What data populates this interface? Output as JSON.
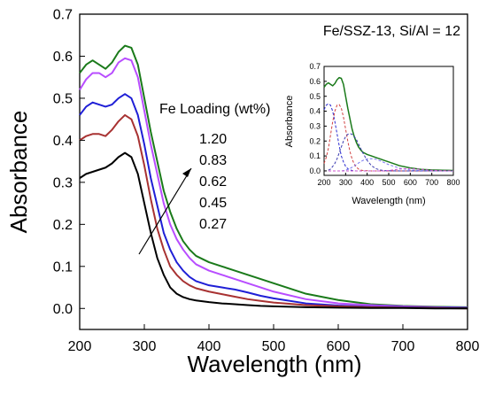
{
  "chart_data": [
    {
      "type": "line",
      "title": "Fe/SSZ-13, Si/Al = 12",
      "xlabel": "Wavelength (nm)",
      "ylabel": "Absorbance",
      "xlim": [
        200,
        800
      ],
      "ylim": [
        -0.05,
        0.7
      ],
      "x_ticks": [
        200,
        300,
        400,
        500,
        600,
        700,
        800
      ],
      "y_ticks": [
        0.0,
        0.1,
        0.2,
        0.3,
        0.4,
        0.5,
        0.6,
        0.7
      ],
      "x_tick_labels": [
        "200",
        "300",
        "400",
        "500",
        "600",
        "700",
        "800"
      ],
      "y_tick_labels": [
        "0.0",
        "0.1",
        "0.2",
        "0.3",
        "0.4",
        "0.5",
        "0.6",
        "0.7"
      ],
      "grid": false,
      "legend_title": "Fe Loading (wt%)",
      "legend_entries": [
        "1.20",
        "0.83",
        "0.62",
        "0.45",
        "0.27"
      ],
      "annotation": "arrow pointing toward increasing Fe loading",
      "x": [
        200,
        210,
        220,
        230,
        240,
        250,
        260,
        270,
        280,
        290,
        300,
        310,
        320,
        330,
        340,
        350,
        360,
        370,
        380,
        400,
        420,
        440,
        460,
        480,
        500,
        550,
        600,
        650,
        700,
        750,
        800
      ],
      "series": [
        {
          "name": "1.20",
          "color": "#1a7a1a",
          "values": [
            0.56,
            0.58,
            0.59,
            0.58,
            0.57,
            0.585,
            0.61,
            0.625,
            0.62,
            0.58,
            0.5,
            0.42,
            0.35,
            0.28,
            0.23,
            0.19,
            0.16,
            0.14,
            0.125,
            0.11,
            0.1,
            0.09,
            0.08,
            0.07,
            0.06,
            0.035,
            0.02,
            0.01,
            0.006,
            0.004,
            0.003
          ]
        },
        {
          "name": "0.83",
          "color": "#b84dff",
          "values": [
            0.52,
            0.545,
            0.56,
            0.56,
            0.55,
            0.56,
            0.585,
            0.595,
            0.59,
            0.55,
            0.47,
            0.39,
            0.32,
            0.25,
            0.2,
            0.165,
            0.14,
            0.12,
            0.105,
            0.09,
            0.08,
            0.07,
            0.06,
            0.05,
            0.04,
            0.022,
            0.012,
            0.008,
            0.005,
            0.003,
            0.002
          ]
        },
        {
          "name": "0.62",
          "color": "#1f1fd6",
          "values": [
            0.46,
            0.48,
            0.49,
            0.485,
            0.48,
            0.485,
            0.5,
            0.51,
            0.5,
            0.46,
            0.39,
            0.31,
            0.245,
            0.18,
            0.14,
            0.11,
            0.09,
            0.075,
            0.065,
            0.055,
            0.05,
            0.045,
            0.038,
            0.03,
            0.024,
            0.012,
            0.007,
            0.004,
            0.003,
            0.002,
            0.001
          ]
        },
        {
          "name": "0.45",
          "color": "#a83232",
          "values": [
            0.4,
            0.41,
            0.415,
            0.415,
            0.41,
            0.425,
            0.445,
            0.46,
            0.45,
            0.41,
            0.34,
            0.26,
            0.19,
            0.14,
            0.1,
            0.08,
            0.065,
            0.055,
            0.048,
            0.04,
            0.034,
            0.028,
            0.022,
            0.018,
            0.014,
            0.008,
            0.005,
            0.003,
            0.002,
            0.001,
            0.0
          ]
        },
        {
          "name": "0.27",
          "color": "#000000",
          "values": [
            0.31,
            0.32,
            0.325,
            0.33,
            0.335,
            0.345,
            0.36,
            0.37,
            0.36,
            0.32,
            0.25,
            0.18,
            0.12,
            0.08,
            0.05,
            0.035,
            0.027,
            0.022,
            0.019,
            0.015,
            0.012,
            0.01,
            0.008,
            0.006,
            0.005,
            0.003,
            0.002,
            0.001,
            0.001,
            0.0,
            0.0
          ]
        }
      ]
    },
    {
      "type": "line",
      "title": "",
      "xlabel": "Wavelength (nm)",
      "ylabel": "Absorbance",
      "xlim": [
        200,
        800
      ],
      "ylim": [
        -0.03,
        0.7
      ],
      "x_ticks": [
        200,
        300,
        400,
        500,
        600,
        700,
        800
      ],
      "y_ticks": [
        0.0,
        0.1,
        0.2,
        0.3,
        0.4,
        0.5,
        0.6,
        0.7
      ],
      "x_tick_labels": [
        "200",
        "300",
        "400",
        "500",
        "600",
        "700",
        "800"
      ],
      "y_tick_labels": [
        "0.0",
        "0.1",
        "0.2",
        "0.3",
        "0.4",
        "0.5",
        "0.6",
        "0.7"
      ],
      "grid": false,
      "x": [
        200,
        210,
        220,
        230,
        240,
        250,
        260,
        270,
        280,
        290,
        300,
        310,
        320,
        330,
        340,
        350,
        360,
        370,
        380,
        400,
        420,
        440,
        460,
        480,
        500,
        550,
        600,
        650,
        700,
        750,
        800
      ],
      "series": [
        {
          "color": "#1a7a1a",
          "style": "solid",
          "values": [
            0.56,
            0.58,
            0.59,
            0.58,
            0.57,
            0.585,
            0.61,
            0.625,
            0.62,
            0.58,
            0.5,
            0.42,
            0.35,
            0.28,
            0.23,
            0.19,
            0.16,
            0.14,
            0.125,
            0.11,
            0.1,
            0.09,
            0.08,
            0.07,
            0.06,
            0.035,
            0.02,
            0.01,
            0.006,
            0.004,
            0.003
          ]
        },
        {
          "color": "#2b2bd0",
          "style": "dashed",
          "values": [
            0.41,
            0.44,
            0.45,
            0.44,
            0.4,
            0.33,
            0.25,
            0.17,
            0.1,
            0.06,
            0.03,
            0.015,
            0.007,
            0.003,
            0.001,
            0,
            0,
            0,
            0,
            0,
            0,
            0,
            0,
            0,
            0,
            0,
            0,
            0,
            0,
            0,
            0
          ]
        },
        {
          "color": "#d04040",
          "style": "dashed",
          "values": [
            0.05,
            0.09,
            0.15,
            0.24,
            0.33,
            0.4,
            0.44,
            0.445,
            0.42,
            0.36,
            0.28,
            0.2,
            0.13,
            0.08,
            0.045,
            0.025,
            0.012,
            0.006,
            0.003,
            0.001,
            0,
            0,
            0,
            0,
            0,
            0,
            0,
            0,
            0,
            0,
            0
          ]
        },
        {
          "color": "#3a3ab0",
          "style": "dashed",
          "values": [
            0,
            0,
            0.005,
            0.012,
            0.03,
            0.05,
            0.08,
            0.12,
            0.16,
            0.2,
            0.23,
            0.245,
            0.25,
            0.245,
            0.23,
            0.21,
            0.18,
            0.15,
            0.12,
            0.07,
            0.035,
            0.015,
            0.006,
            0.002,
            0.001,
            0,
            0,
            0,
            0,
            0,
            0
          ]
        },
        {
          "color": "#7a7af0",
          "style": "dashed",
          "values": [
            0,
            0,
            0,
            0,
            0,
            0,
            0,
            0,
            0,
            0.002,
            0.005,
            0.01,
            0.016,
            0.024,
            0.033,
            0.043,
            0.053,
            0.062,
            0.07,
            0.08,
            0.082,
            0.078,
            0.068,
            0.055,
            0.042,
            0.018,
            0.006,
            0.002,
            0.001,
            0,
            0
          ]
        },
        {
          "color": "#cc55cc",
          "style": "dashed",
          "values": [
            0,
            0,
            0,
            0,
            0,
            0,
            0,
            0,
            0,
            0,
            0,
            0,
            0,
            0,
            0,
            0,
            0,
            0,
            0,
            0,
            0,
            0,
            0,
            0,
            0.003,
            0.012,
            0.016,
            0.01,
            0.004,
            0.001,
            0
          ]
        }
      ]
    }
  ]
}
